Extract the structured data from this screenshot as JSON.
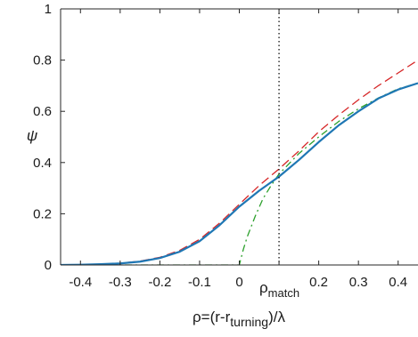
{
  "chart_data": {
    "type": "line",
    "title": "",
    "xlabel_parts": {
      "pre": "ρ=(r-r",
      "sub": "turning",
      "post": ")/λ"
    },
    "ylabel": "ψ",
    "xlim": [
      -0.45,
      0.45
    ],
    "ylim": [
      0,
      1
    ],
    "x_ticks": [
      -0.4,
      -0.3,
      -0.2,
      -0.1,
      0,
      0.2,
      0.3,
      0.4
    ],
    "x_tick_labels": [
      "-0.4",
      "-0.3",
      "-0.2",
      "-0.1",
      "0",
      "0.2",
      "0.3",
      "0.4"
    ],
    "x_tick_marks": [
      -0.4,
      -0.3,
      -0.2,
      -0.1,
      0,
      0.1,
      0.2,
      0.3,
      0.4
    ],
    "y_ticks": [
      0,
      0.2,
      0.4,
      0.6,
      0.8,
      1
    ],
    "y_tick_labels": [
      "0",
      "0.2",
      "0.4",
      "0.6",
      "0.8",
      "1"
    ],
    "grid": false,
    "vline": {
      "x": 0.1,
      "label_parts": {
        "pre": "ρ",
        "sub": "match"
      },
      "style": "dotted",
      "color": "#000000"
    },
    "series": [
      {
        "style": "dashed",
        "color": "#d62728",
        "x": [
          -0.45,
          -0.4,
          -0.35,
          -0.3,
          -0.25,
          -0.2,
          -0.15,
          -0.1,
          -0.05,
          0,
          0.05,
          0.1,
          0.15,
          0.2,
          0.25,
          0.3,
          0.35,
          0.4,
          0.45
        ],
        "y": [
          0.0,
          0.001,
          0.003,
          0.007,
          0.015,
          0.03,
          0.057,
          0.1,
          0.163,
          0.237,
          0.31,
          0.375,
          0.445,
          0.52,
          0.585,
          0.645,
          0.7,
          0.75,
          0.8
        ]
      },
      {
        "style": "dashdot",
        "color": "#2ca02c",
        "x": [
          -0.45,
          0,
          0.01,
          0.02,
          0.04,
          0.06,
          0.08,
          0.1,
          0.15,
          0.2,
          0.25,
          0.3,
          0.35,
          0.4,
          0.45
        ],
        "y": [
          0,
          0,
          0.06,
          0.11,
          0.19,
          0.26,
          0.31,
          0.355,
          0.435,
          0.5,
          0.56,
          0.61,
          0.652,
          0.688,
          0.71
        ]
      },
      {
        "style": "solid",
        "color": "#1f77b4",
        "x": [
          -0.45,
          -0.4,
          -0.35,
          -0.3,
          -0.25,
          -0.2,
          -0.15,
          -0.1,
          -0.05,
          0,
          0.05,
          0.1,
          0.15,
          0.2,
          0.25,
          0.3,
          0.35,
          0.4,
          0.45
        ],
        "y": [
          0.0,
          0.001,
          0.003,
          0.006,
          0.013,
          0.027,
          0.052,
          0.093,
          0.155,
          0.228,
          0.29,
          0.345,
          0.41,
          0.48,
          0.545,
          0.6,
          0.65,
          0.685,
          0.71
        ]
      }
    ]
  }
}
